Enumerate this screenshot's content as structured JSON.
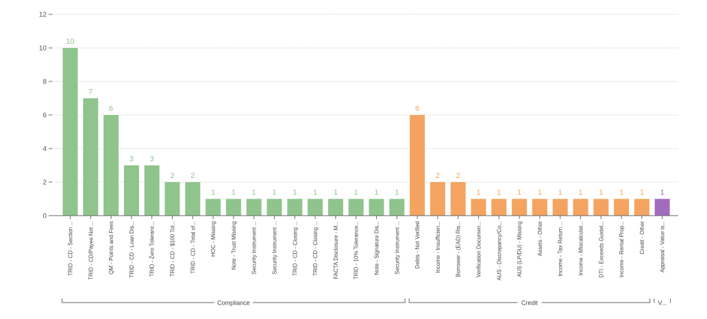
{
  "chart_data": {
    "type": "bar",
    "ylim": [
      0,
      12
    ],
    "yticks": [
      0,
      2,
      4,
      6,
      8,
      10,
      12
    ],
    "grid": true,
    "legend": "none",
    "colors": {
      "Compliance": "#8fc48c",
      "Credit": "#f4a460",
      "Valuation": "#a36bbd"
    },
    "categories": [
      "TRID - CD - Section ...",
      "TRID - CD/Payee Not ...",
      "QM - Points and Fees",
      "TRID - CD - Loan Dis...",
      "TRID - Zero Toleranc...",
      "TRID - CD - $100 Tol...",
      "TRID - CD - Total of...",
      "HOC - Missing",
      "Note - Trust Missing",
      "Security Instrument ...",
      "Security Instrument ...",
      "TRID - CD - Closing ...",
      "TRID - CD - Closing ...",
      "FACTA Disclosure - M...",
      "TRID - 10% Tolerance...",
      "Note - Signature Dis...",
      "Security Instrument ...",
      "Debts - Not Verified",
      "Income - Insufficien...",
      "Borrower - (EAD) Ris...",
      "Verification Documen...",
      "AUS - Discrepancy/Co...",
      "AUS (LP/DU) - Missing",
      "Assets - Other",
      "Income - Tax Return ...",
      "Income - Miscalculat...",
      "DTI - Exceeds Guidel...",
      "Income - Rental Prop...",
      "Credit - Other",
      "Appraisal - Value is..."
    ],
    "values": [
      10,
      7,
      6,
      3,
      3,
      2,
      2,
      1,
      1,
      1,
      1,
      1,
      1,
      1,
      1,
      1,
      1,
      6,
      2,
      2,
      1,
      1,
      1,
      1,
      1,
      1,
      1,
      1,
      1,
      1
    ],
    "category_group": [
      "Compliance",
      "Compliance",
      "Compliance",
      "Compliance",
      "Compliance",
      "Compliance",
      "Compliance",
      "Compliance",
      "Compliance",
      "Compliance",
      "Compliance",
      "Compliance",
      "Compliance",
      "Compliance",
      "Compliance",
      "Compliance",
      "Compliance",
      "Credit",
      "Credit",
      "Credit",
      "Credit",
      "Credit",
      "Credit",
      "Credit",
      "Credit",
      "Credit",
      "Credit",
      "Credit",
      "Credit",
      "Valuation"
    ],
    "groups": [
      {
        "key": "Compliance",
        "label": "Compliance"
      },
      {
        "key": "Credit",
        "label": "Credit"
      },
      {
        "key": "Valuation",
        "label": "V..."
      }
    ]
  }
}
